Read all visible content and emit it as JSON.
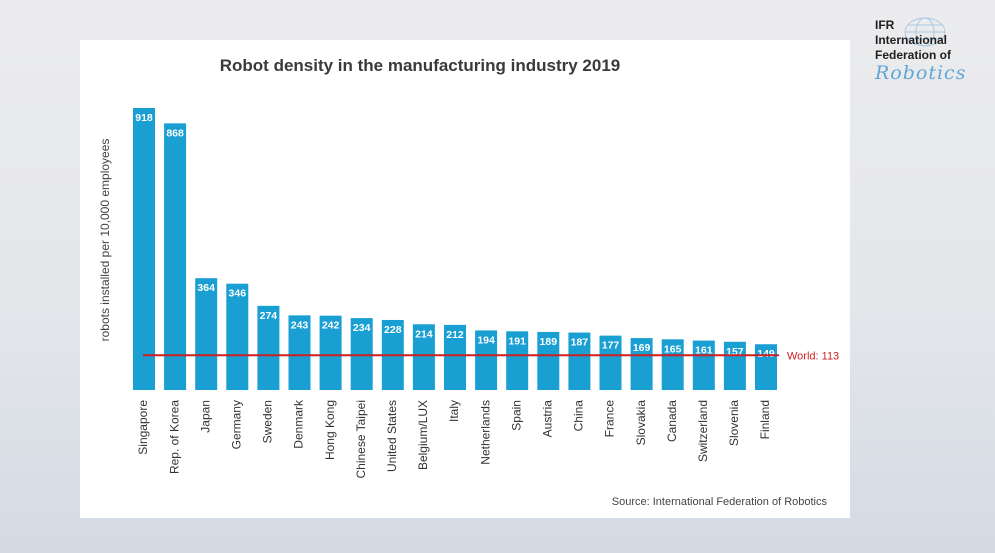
{
  "chart_data": {
    "type": "bar",
    "title": "Robot density in the manufacturing industry 2019",
    "ylabel": "robots installed per 10,000 employees",
    "xlabel": "",
    "categories": [
      "Singapore",
      "Rep. of Korea",
      "Japan",
      "Germany",
      "Sweden",
      "Denmark",
      "Hong Kong",
      "Chinese Taipei",
      "United States",
      "Belgium/LUX",
      "Italy",
      "Netherlands",
      "Spain",
      "Austria",
      "China",
      "France",
      "Slovakia",
      "Canada",
      "Switzerland",
      "Slovenia",
      "Finland"
    ],
    "values": [
      918,
      868,
      364,
      346,
      274,
      243,
      242,
      234,
      228,
      214,
      212,
      194,
      191,
      189,
      187,
      177,
      169,
      165,
      161,
      157,
      149
    ],
    "ylim": [
      0,
      918
    ],
    "reference_line": {
      "label": "World: 113",
      "value": 113,
      "color": "#cc1f1f"
    },
    "bar_color": "#1a9fd3",
    "grid": false,
    "source": "Source: International Federation of Robotics"
  },
  "logo": {
    "line1": "IFR",
    "line2": "International",
    "line3": "Federation of",
    "script": "Robotics"
  }
}
